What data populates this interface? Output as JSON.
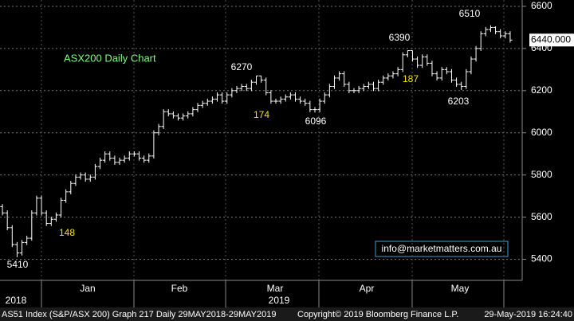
{
  "chart_data": {
    "type": "ohlc",
    "title": "ASX200 Daily Chart",
    "categories": [
      null,
      null,
      null,
      null,
      null,
      null,
      null,
      null,
      null,
      null,
      null,
      null,
      null,
      null,
      null,
      null,
      null,
      null,
      null,
      null,
      null,
      null,
      null,
      null,
      null,
      null,
      null,
      null,
      null,
      null,
      null,
      null,
      null,
      null,
      null,
      null,
      null,
      null,
      null,
      null,
      null,
      null,
      null,
      null,
      null,
      null,
      null,
      null,
      null,
      null,
      null,
      null,
      null,
      null,
      null,
      null,
      null,
      null,
      null,
      null,
      null,
      null,
      null,
      null,
      null,
      null,
      null,
      null,
      null,
      null,
      null,
      null,
      null,
      null,
      null,
      null,
      null,
      null,
      null,
      null,
      null,
      null,
      null,
      null,
      null,
      null,
      null,
      null,
      null,
      null,
      null,
      null,
      null,
      null,
      null,
      null,
      null,
      null,
      null,
      null,
      null,
      null,
      null,
      null,
      null
    ],
    "open": [
      5650,
      5620,
      5550,
      5470,
      5430,
      5480,
      5500,
      5620,
      5690,
      5620,
      5570,
      5590,
      5610,
      5680,
      5720,
      5760,
      5790,
      5800,
      5780,
      5790,
      5840,
      5870,
      5900,
      5880,
      5860,
      5870,
      5880,
      5900,
      5900,
      5880,
      5870,
      5890,
      6000,
      6030,
      6100,
      6090,
      6080,
      6070,
      6080,
      6090,
      6110,
      6130,
      6140,
      6150,
      6160,
      6180,
      6150,
      6180,
      6200,
      6210,
      6220,
      6210,
      6240,
      6270,
      6250,
      6190,
      6150,
      6150,
      6160,
      6170,
      6180,
      6160,
      6150,
      6140,
      6110,
      6110,
      6150,
      6180,
      6220,
      6260,
      6280,
      6230,
      6200,
      6200,
      6210,
      6220,
      6230,
      6210,
      6240,
      6260,
      6270,
      6280,
      6300,
      6370,
      6390,
      6350,
      6320,
      6360,
      6330,
      6280,
      6260,
      6300,
      6290,
      6250,
      6230,
      6220,
      6290,
      6350,
      6400,
      6470,
      6490,
      6500,
      6480,
      6460,
      6470
    ],
    "high": [
      5662,
      5632,
      5562,
      5482,
      5492,
      5512,
      5632,
      5702,
      5702,
      5632,
      5602,
      5622,
      5692,
      5732,
      5772,
      5802,
      5812,
      5812,
      5802,
      5852,
      5882,
      5912,
      5912,
      5892,
      5882,
      5892,
      5912,
      5912,
      5912,
      5892,
      5902,
      6012,
      6042,
      6112,
      6112,
      6102,
      6092,
      6092,
      6102,
      6122,
      6142,
      6152,
      6162,
      6172,
      6192,
      6192,
      6192,
      6212,
      6222,
      6232,
      6232,
      6252,
      6270,
      6270,
      6262,
      6202,
      6162,
      6172,
      6182,
      6192,
      6192,
      6172,
      6162,
      6152,
      6122,
      6162,
      6192,
      6232,
      6272,
      6292,
      6292,
      6242,
      6212,
      6222,
      6232,
      6242,
      6242,
      6252,
      6272,
      6282,
      6292,
      6312,
      6382,
      6390,
      6390,
      6362,
      6372,
      6372,
      6342,
      6292,
      6312,
      6312,
      6302,
      6262,
      6242,
      6302,
      6362,
      6412,
      6482,
      6502,
      6510,
      6505,
      6492,
      6482,
      6482
    ],
    "low": [
      5608,
      5538,
      5458,
      5410,
      5418,
      5468,
      5488,
      5608,
      5608,
      5558,
      5558,
      5578,
      5598,
      5668,
      5708,
      5748,
      5778,
      5768,
      5768,
      5778,
      5828,
      5858,
      5868,
      5848,
      5848,
      5858,
      5868,
      5888,
      5868,
      5858,
      5858,
      5878,
      5988,
      6018,
      6078,
      6068,
      6058,
      6058,
      6068,
      6078,
      6098,
      6118,
      6128,
      6138,
      6148,
      6138,
      6138,
      6168,
      6188,
      6198,
      6198,
      6198,
      6228,
      6238,
      6178,
      6138,
      6138,
      6138,
      6148,
      6158,
      6148,
      6138,
      6128,
      6098,
      6096,
      6098,
      6138,
      6168,
      6208,
      6248,
      6218,
      6188,
      6188,
      6188,
      6198,
      6208,
      6198,
      6198,
      6228,
      6248,
      6258,
      6268,
      6288,
      6358,
      6338,
      6308,
      6308,
      6318,
      6268,
      6248,
      6248,
      6278,
      6238,
      6218,
      6203,
      6208,
      6278,
      6338,
      6388,
      6458,
      6478,
      6468,
      6448,
      6448,
      6428
    ],
    "close": [
      5620,
      5550,
      5470,
      5430,
      5480,
      5500,
      5620,
      5690,
      5620,
      5570,
      5590,
      5610,
      5680,
      5720,
      5760,
      5790,
      5800,
      5780,
      5790,
      5840,
      5870,
      5900,
      5880,
      5860,
      5870,
      5880,
      5900,
      5900,
      5880,
      5870,
      5890,
      6000,
      6030,
      6100,
      6090,
      6080,
      6070,
      6080,
      6090,
      6110,
      6130,
      6140,
      6150,
      6160,
      6180,
      6150,
      6180,
      6200,
      6210,
      6220,
      6210,
      6240,
      6270,
      6250,
      6190,
      6150,
      6150,
      6160,
      6170,
      6180,
      6160,
      6150,
      6140,
      6110,
      6110,
      6150,
      6180,
      6220,
      6260,
      6280,
      6230,
      6200,
      6200,
      6210,
      6220,
      6230,
      6210,
      6240,
      6260,
      6270,
      6280,
      6300,
      6370,
      6390,
      6350,
      6320,
      6360,
      6330,
      6280,
      6260,
      6300,
      6290,
      6250,
      6230,
      6220,
      6290,
      6350,
      6400,
      6470,
      6490,
      6500,
      6480,
      6460,
      6470,
      6440
    ],
    "color": "#ffffff",
    "ylim": [
      5300,
      6630
    ],
    "yticks": [
      5400,
      5600,
      5800,
      6000,
      6200,
      6400,
      6600
    ],
    "grid": true,
    "last_price": {
      "value": 6440,
      "label": "6440.000"
    },
    "months": [
      "Jan",
      "Feb",
      "Mar",
      "Apr",
      "May"
    ],
    "years": [
      "2018",
      "2019"
    ],
    "annotations": [
      {
        "text": "5410",
        "value": 5410,
        "color": "#ffffff"
      },
      {
        "text": "148",
        "value": 148,
        "color": "#f5e400"
      },
      {
        "text": "6270",
        "value": 6270,
        "color": "#ffffff"
      },
      {
        "text": "174",
        "value": 174,
        "color": "#f5e400"
      },
      {
        "text": "6096",
        "value": 6096,
        "color": "#ffffff"
      },
      {
        "text": "6390",
        "value": 6390,
        "color": "#ffffff"
      },
      {
        "text": "187",
        "value": 187,
        "color": "#f5e400"
      },
      {
        "text": "6203",
        "value": 6203,
        "color": "#ffffff"
      },
      {
        "text": "6510",
        "value": 6510,
        "color": "#ffffff"
      }
    ],
    "watermark": "info@marketmatters.com.au",
    "footer": [
      "AS51 Index (S&P/ASX 200) Graph 217  Daily 29MAY2018-29MAY2019",
      "Copyright© 2019 Bloomberg Finance L.P.",
      "29-May-2019 16:24:40"
    ]
  }
}
